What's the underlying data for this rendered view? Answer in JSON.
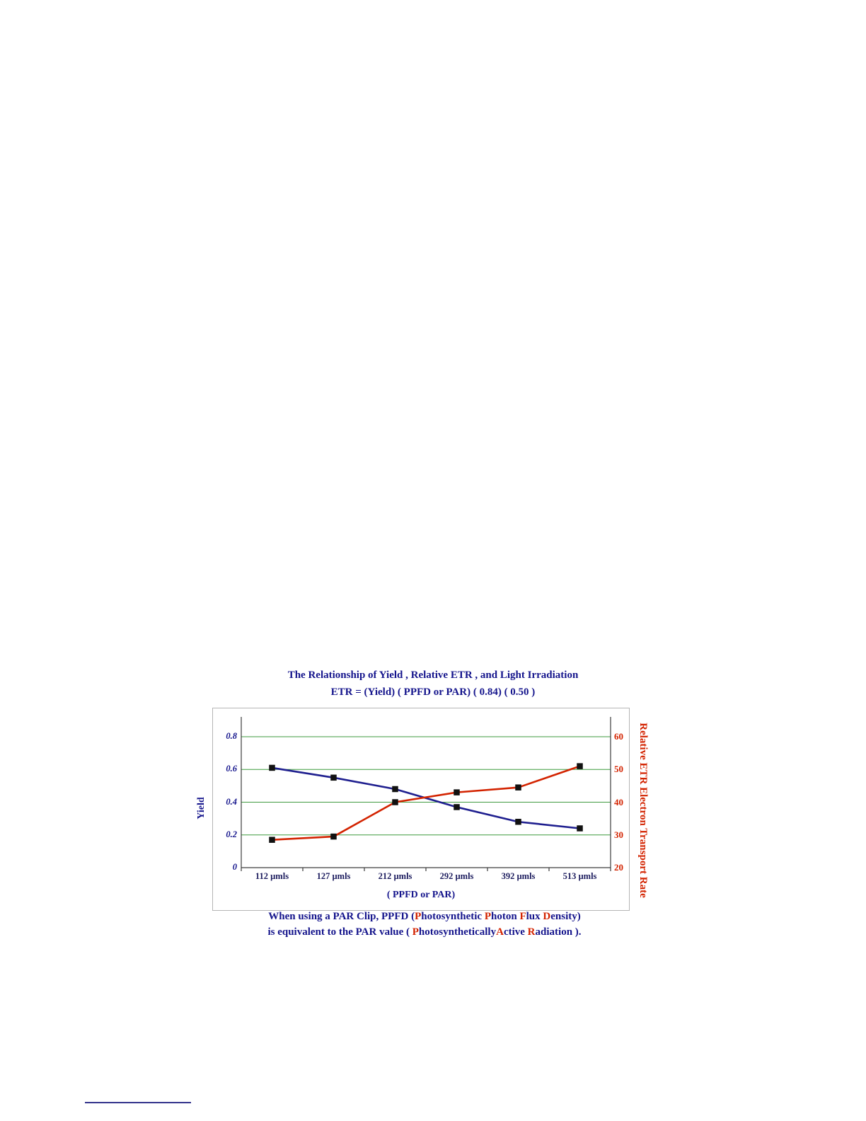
{
  "chart": {
    "title_line1": "The Relationship of Yield , Relative ETR , and Light Irradiation",
    "title_line2": "ETR = (Yield) ( PPFD or PAR) ( 0.84) ( 0.50 )",
    "y_left_title": "Yield",
    "y_right_title": "Relative ETR Electron Transport Rate",
    "x_title": "( PPFD or PAR)"
  },
  "chart_data": {
    "type": "line",
    "title": "The Relationship of Yield, Relative ETR, and Light Irradiation",
    "subtitle": "ETR = (Yield) (PPFD or PAR) (0.84) (0.50)",
    "categories": [
      "112 µmls",
      "127 µmls",
      "212 µmls",
      "292 µmls",
      "392 µmls",
      "513 µmls"
    ],
    "series": [
      {
        "name": "Yield",
        "axis": "left",
        "color": "#1f1f8f",
        "marker": "square",
        "values": [
          0.61,
          0.55,
          0.48,
          0.37,
          0.28,
          0.24
        ]
      },
      {
        "name": "Relative ETR",
        "axis": "right",
        "color": "#d32300",
        "marker": "square",
        "values": [
          28.5,
          29.5,
          40,
          43,
          44.5,
          51
        ]
      }
    ],
    "left_ticks": [
      0.8,
      0.6,
      0.4,
      0.2,
      0
    ],
    "right_ticks": [
      60,
      50,
      40,
      30,
      20
    ],
    "left_ylim": [
      0,
      0.8
    ],
    "right_ylim": [
      20,
      60
    ],
    "xlabel": "( PPFD or PAR)",
    "ylabel_left": "Yield",
    "ylabel_right": "Relative ETR Electron Transport Rate",
    "gridlines": "horizontal",
    "gridline_color": "#3f9b3f",
    "legend": "none",
    "marker_color": "#111111"
  },
  "caption": {
    "line1": [
      {
        "t": "When using a PAR Clip, PPFD (",
        "c": "navy"
      },
      {
        "t": "P",
        "c": "red"
      },
      {
        "t": "hotosynthetic ",
        "c": "navy"
      },
      {
        "t": "P",
        "c": "red"
      },
      {
        "t": "hoton ",
        "c": "navy"
      },
      {
        "t": "F",
        "c": "red"
      },
      {
        "t": "lux ",
        "c": "navy"
      },
      {
        "t": "D",
        "c": "red"
      },
      {
        "t": "ensity)",
        "c": "navy"
      }
    ],
    "line2": [
      {
        "t": "is equivalent to the PAR value ( ",
        "c": "navy"
      },
      {
        "t": "P",
        "c": "red"
      },
      {
        "t": "hotosynthetically",
        "c": "navy"
      },
      {
        "t": "A",
        "c": "red"
      },
      {
        "t": "ctive ",
        "c": "navy"
      },
      {
        "t": "R",
        "c": "red"
      },
      {
        "t": "adiation ).",
        "c": "navy"
      }
    ]
  },
  "colors": {
    "navy": "#14148c",
    "red": "#d32300",
    "grid_green": "#3f9b3f",
    "axis": "#3c3c3c"
  }
}
